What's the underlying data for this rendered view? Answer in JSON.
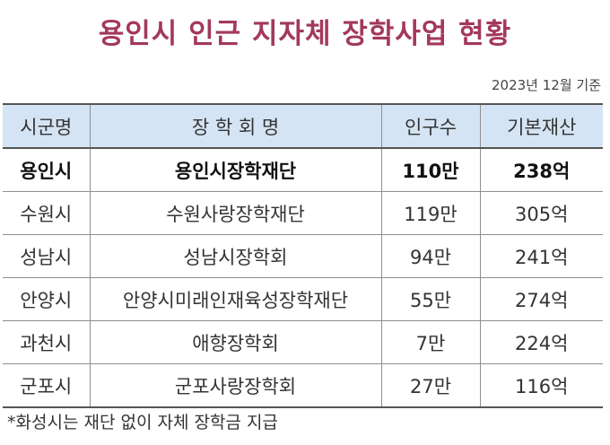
{
  "title": "용인시 인근 지자체 장학사업 현황",
  "date_note": "2023년 12월 기준",
  "table": {
    "headers": [
      "시군명",
      "장 학 회 명",
      "인구수",
      "기본재산"
    ],
    "rows": [
      [
        "용인시",
        "용인시장학재단",
        "110만",
        "238억"
      ],
      [
        "수원시",
        "수원사랑장학재단",
        "119만",
        "305억"
      ],
      [
        "성남시",
        "성남시장학회",
        "94만",
        "241억"
      ],
      [
        "안양시",
        "안양시미래인재육성장학재단",
        "55만",
        "274억"
      ],
      [
        "과천시",
        "애향장학회",
        "7만",
        "224억"
      ],
      [
        "군포시",
        "군포사랑장학회",
        "27만",
        "116억"
      ]
    ],
    "highlighted_row": 0
  },
  "footnote": "*화성시는 재단 없이 자체 장학금 지급",
  "colors": {
    "title": "#a3385f",
    "header_bg": "#d5e4f4",
    "text": "#333333"
  }
}
